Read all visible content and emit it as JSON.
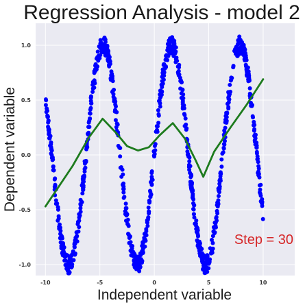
{
  "chart_data": {
    "type": "scatter",
    "title": "Regression Analysis - model 2",
    "xlabel": "Independent variable",
    "ylabel": "Dependent variable",
    "xlim": [
      -10.9,
      12.9
    ],
    "ylim": [
      -1.1,
      1.2
    ],
    "x_ticks": [
      -10,
      -5,
      0,
      5,
      10
    ],
    "x_tick_labels": [
      "-10",
      "-5",
      "0",
      "5",
      "10"
    ],
    "y_ticks": [
      -1.0,
      -0.5,
      0.0,
      0.5,
      1.0
    ],
    "y_tick_labels": [
      "-1.0",
      "-0.5",
      "0.0",
      "0.5",
      "1.0"
    ],
    "grid": true,
    "background": "#eaeaf2",
    "series": [
      {
        "kind": "scatter",
        "color": "#0000ff",
        "x_range": [
          -10,
          10
        ],
        "count": 1000,
        "relation": "y = sin(x) + noise",
        "noise_amplitude": 0.08
      },
      {
        "kind": "line",
        "color": "#1e7b1e",
        "x": [
          -10.0,
          -7.5,
          -6.0,
          -4.75,
          -3.5,
          -2.5,
          -1.5,
          -0.5,
          0.5,
          1.7,
          2.8,
          3.8,
          4.5,
          5.5,
          7.0,
          8.5,
          10.0
        ],
        "y": [
          -0.47,
          -0.1,
          0.16,
          0.33,
          0.2,
          0.08,
          0.04,
          0.07,
          0.18,
          0.29,
          0.15,
          -0.05,
          -0.2,
          0.03,
          0.25,
          0.46,
          0.69
        ]
      }
    ],
    "annotation": {
      "text": "Step = 30",
      "color": "#d62728",
      "position": "bottom-right"
    }
  }
}
